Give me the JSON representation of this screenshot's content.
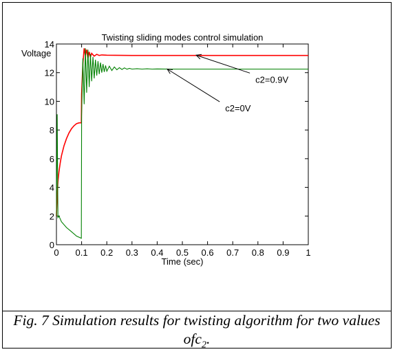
{
  "chart_data": {
    "type": "line",
    "title": "Twisting sliding modes control simulation",
    "xlabel": "Time (sec)",
    "ylabel": "Voltage",
    "xlim": [
      0,
      1
    ],
    "ylim": [
      0,
      14
    ],
    "xticks": [
      0,
      0.1,
      0.2,
      0.3,
      0.4,
      0.5,
      0.6,
      0.7,
      0.8,
      0.9,
      1
    ],
    "yticks": [
      0,
      2,
      4,
      6,
      8,
      10,
      12,
      14
    ],
    "grid": false,
    "series": [
      {
        "name": "c2=0.9V",
        "color": "#ff0000",
        "x": [
          0,
          0.003,
          0.006,
          0.01,
          0.015,
          0.02,
          0.03,
          0.04,
          0.05,
          0.06,
          0.07,
          0.08,
          0.09,
          0.099,
          0.1,
          0.105,
          0.11,
          0.115,
          0.12,
          0.125,
          0.13,
          0.135,
          0.14,
          0.15,
          0.16,
          0.17,
          0.18,
          0.2,
          0.3,
          0.4,
          0.5,
          0.6,
          0.7,
          0.8,
          0.9,
          1.0
        ],
        "y": [
          2.0,
          3.5,
          4.4,
          5.1,
          5.7,
          6.2,
          6.9,
          7.4,
          7.8,
          8.1,
          8.3,
          8.45,
          8.5,
          8.5,
          10.5,
          12.6,
          13.7,
          13.2,
          13.6,
          13.0,
          13.45,
          13.1,
          13.35,
          13.15,
          13.28,
          13.2,
          13.24,
          13.22,
          13.2,
          13.2,
          13.2,
          13.2,
          13.2,
          13.2,
          13.2,
          13.2
        ]
      },
      {
        "name": "c2=0V",
        "color": "#008000",
        "x": [
          0,
          0.003,
          0.006,
          0.01,
          0.02,
          0.04,
          0.06,
          0.08,
          0.099,
          0.1,
          0.105,
          0.11,
          0.115,
          0.12,
          0.125,
          0.13,
          0.135,
          0.14,
          0.145,
          0.15,
          0.155,
          0.16,
          0.165,
          0.17,
          0.175,
          0.18,
          0.185,
          0.19,
          0.195,
          0.2,
          0.21,
          0.22,
          0.23,
          0.24,
          0.25,
          0.26,
          0.27,
          0.28,
          0.29,
          0.3,
          0.32,
          0.34,
          0.36,
          0.38,
          0.4,
          0.45,
          0.5,
          0.6,
          0.7,
          0.8,
          0.9,
          1.0
        ],
        "y": [
          2.0,
          9.1,
          1.9,
          2.0,
          1.6,
          1.2,
          0.9,
          0.6,
          0.45,
          9.0,
          13.0,
          9.8,
          13.7,
          10.6,
          13.6,
          11.0,
          13.3,
          11.4,
          13.1,
          11.6,
          12.9,
          11.8,
          12.8,
          11.9,
          12.7,
          12.0,
          12.6,
          12.05,
          12.5,
          12.1,
          12.45,
          12.15,
          12.4,
          12.2,
          12.35,
          12.22,
          12.33,
          12.24,
          12.3,
          12.25,
          12.28,
          12.25,
          12.27,
          12.25,
          12.26,
          12.25,
          12.25,
          12.25,
          12.25,
          12.25,
          12.25,
          12.25
        ]
      }
    ],
    "annotations": [
      {
        "text": "c2=0.9V",
        "x": 0.555,
        "y": 13.22,
        "label_x": 0.79,
        "label_y": 11.3
      },
      {
        "text": "c2=0V",
        "x": 0.44,
        "y": 12.25,
        "label_x": 0.67,
        "label_y": 9.3
      }
    ]
  },
  "caption": {
    "prefix": "Fig. 7 Simulation results for twisting algorithm for two values of",
    "var": "c",
    "sub": "2",
    "suffix": "."
  }
}
